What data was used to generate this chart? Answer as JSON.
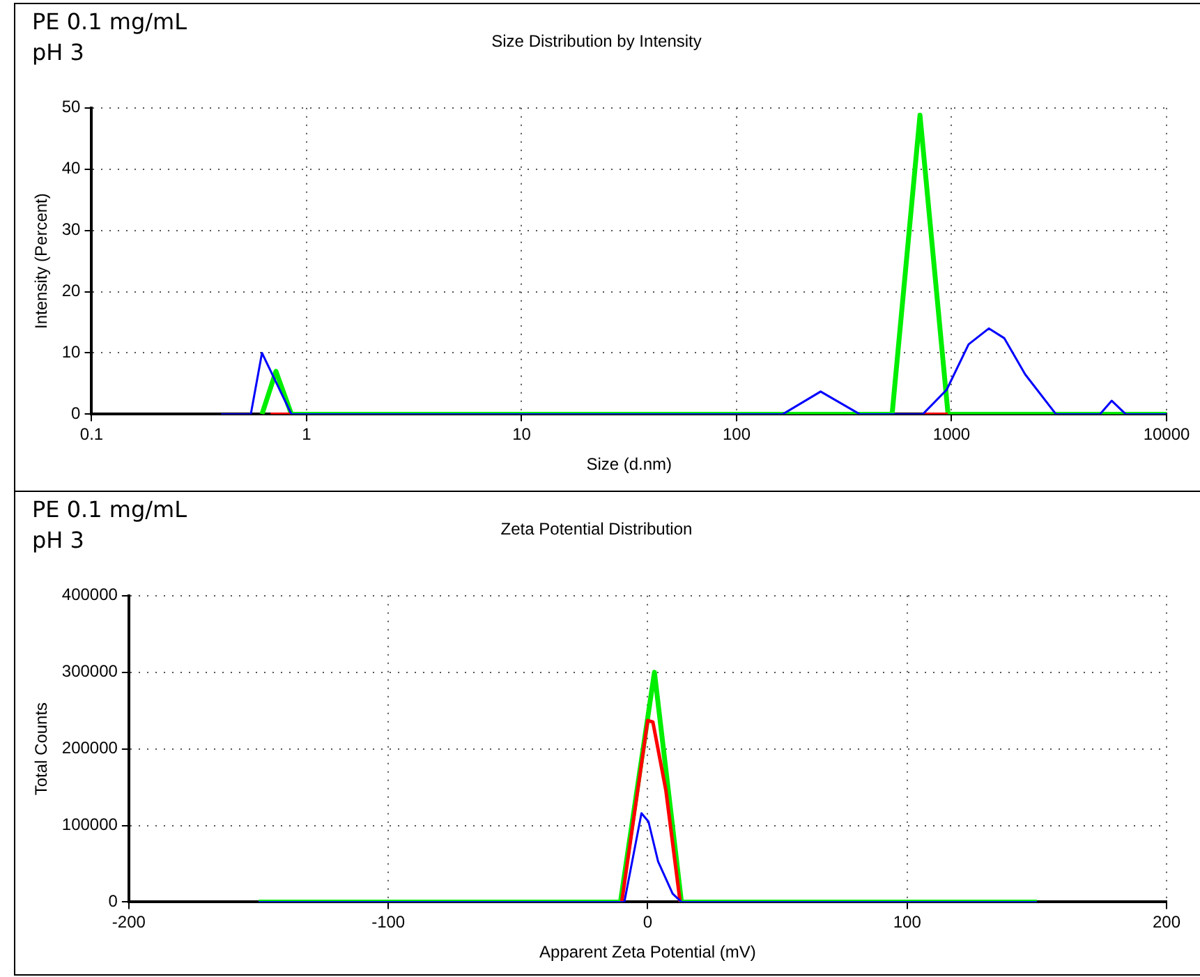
{
  "chart_data": [
    {
      "type": "line",
      "title": "Size Distribution by Intensity",
      "xlabel": "Size (d.nm)",
      "ylabel": "Intensity (Percent)",
      "annotations": [
        "PE 0.1 mg/mL",
        "pH 3"
      ],
      "log": "x",
      "xlim": [
        0.1,
        10000
      ],
      "xticks": [
        0.1,
        1,
        10,
        100,
        1000,
        10000
      ],
      "ylim": [
        0,
        50
      ],
      "yticks": [
        0,
        10,
        20,
        30,
        40,
        50
      ],
      "grid": true,
      "legend": false,
      "series": [
        {
          "color": "#00ee00",
          "x": [
            0.62,
            0.72,
            0.85,
            529,
            713,
            963,
            10000
          ],
          "values": [
            0,
            7,
            0,
            0,
            48.8,
            0,
            0
          ]
        },
        {
          "color": "#ff0000",
          "x": [
            0.68,
            0.85,
            100,
            740,
            960
          ],
          "values": [
            0,
            0,
            null,
            0,
            0
          ]
        },
        {
          "color": "#0000ff",
          "x": [
            0.4,
            0.55,
            0.62,
            0.85,
            164,
            246,
            374,
            735,
            949,
            1200,
            1490,
            1760,
            2200,
            3060,
            4900,
            5560,
            6460,
            10000
          ],
          "values": [
            0,
            0,
            10,
            0,
            0,
            3.7,
            0,
            0,
            4,
            11.4,
            14,
            12.4,
            6.5,
            0,
            0,
            2.2,
            0,
            0
          ]
        }
      ]
    },
    {
      "type": "line",
      "title": "Zeta Potential Distribution",
      "xlabel": "Apparent Zeta Potential (mV)",
      "ylabel": "Total Counts",
      "annotations": [
        "PE 0.1 mg/mL",
        "pH 3"
      ],
      "xlim": [
        -200,
        200
      ],
      "xticks": [
        -200,
        -100,
        0,
        100,
        200
      ],
      "ylim": [
        0,
        400000
      ],
      "yticks": [
        0,
        100000,
        200000,
        300000,
        400000
      ],
      "grid": true,
      "legend": false,
      "series": [
        {
          "color": "#00ee00",
          "x": [
            -150,
            -10.5,
            2.6,
            13,
            150
          ],
          "values": [
            0,
            0,
            300000,
            0,
            0
          ]
        },
        {
          "color": "#ff0000",
          "x": [
            -10,
            0,
            2,
            7,
            12.5
          ],
          "values": [
            0,
            237000,
            235000,
            146000,
            0
          ]
        },
        {
          "color": "#0000ff",
          "x": [
            -150,
            -9,
            -2.4,
            0.3,
            4,
            9.6,
            13,
            150
          ],
          "values": [
            0,
            0,
            116000,
            105000,
            53000,
            11000,
            0,
            0
          ]
        }
      ]
    }
  ]
}
